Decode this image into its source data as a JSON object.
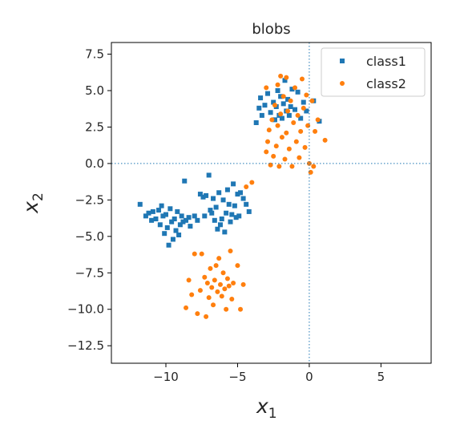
{
  "chart_data": {
    "type": "scatter",
    "title": "blobs",
    "xlabel": "x",
    "xlabel_subscript": "1",
    "ylabel": "x",
    "ylabel_subscript": "2",
    "xlim": [
      -13.8,
      8.5
    ],
    "ylim": [
      -13.7,
      8.3
    ],
    "xticks": [
      -10,
      -5,
      0,
      5
    ],
    "xtick_labels": [
      "−10",
      "−5",
      "0",
      "5"
    ],
    "yticks": [
      7.5,
      5.0,
      2.5,
      0.0,
      -2.5,
      -5.0,
      -7.5,
      -10.0,
      -12.5
    ],
    "ytick_labels": [
      "7.5",
      "5.0",
      "2.5",
      "0.0",
      "−2.5",
      "−5.0",
      "−7.5",
      "−10.0",
      "−12.5"
    ],
    "reference_lines": {
      "x": 0,
      "y": 0,
      "style": "dotted",
      "color": "#1f77b4"
    },
    "grid": false,
    "legend": "top-right",
    "series": [
      {
        "name": "class1",
        "marker": "square",
        "color": "#1f77b4",
        "points": [
          [
            -11.8,
            -2.8
          ],
          [
            -11.4,
            -3.6
          ],
          [
            -11.2,
            -3.4
          ],
          [
            -11.0,
            -3.9
          ],
          [
            -10.9,
            -3.3
          ],
          [
            -10.7,
            -3.8
          ],
          [
            -10.5,
            -3.2
          ],
          [
            -10.4,
            -4.2
          ],
          [
            -10.3,
            -2.9
          ],
          [
            -10.2,
            -3.6
          ],
          [
            -10.1,
            -4.8
          ],
          [
            -10.0,
            -3.5
          ],
          [
            -9.9,
            -4.4
          ],
          [
            -9.8,
            -5.6
          ],
          [
            -9.7,
            -3.1
          ],
          [
            -9.6,
            -4.0
          ],
          [
            -9.5,
            -5.2
          ],
          [
            -9.4,
            -3.8
          ],
          [
            -9.3,
            -4.6
          ],
          [
            -9.2,
            -3.3
          ],
          [
            -9.1,
            -4.9
          ],
          [
            -9.0,
            -4.2
          ],
          [
            -8.9,
            -3.6
          ],
          [
            -8.8,
            -4.0
          ],
          [
            -8.7,
            -1.2
          ],
          [
            -8.6,
            -3.9
          ],
          [
            -8.4,
            -3.7
          ],
          [
            -8.3,
            -4.3
          ],
          [
            -8.0,
            -3.6
          ],
          [
            -7.8,
            -3.9
          ],
          [
            -7.6,
            -2.1
          ],
          [
            -7.4,
            -2.3
          ],
          [
            -7.3,
            -3.6
          ],
          [
            -7.2,
            -2.2
          ],
          [
            -7.0,
            -0.8
          ],
          [
            -6.9,
            -3.2
          ],
          [
            -6.8,
            -3.4
          ],
          [
            -6.7,
            -2.4
          ],
          [
            -6.6,
            -3.9
          ],
          [
            -6.5,
            -3.0
          ],
          [
            -6.4,
            -4.5
          ],
          [
            -6.3,
            -2.0
          ],
          [
            -6.2,
            -4.2
          ],
          [
            -6.1,
            -3.8
          ],
          [
            -6.0,
            -2.5
          ],
          [
            -5.9,
            -4.7
          ],
          [
            -5.8,
            -3.4
          ],
          [
            -5.7,
            -1.8
          ],
          [
            -5.6,
            -2.8
          ],
          [
            -5.5,
            -4.0
          ],
          [
            -5.4,
            -3.5
          ],
          [
            -5.3,
            -1.4
          ],
          [
            -5.2,
            -2.9
          ],
          [
            -5.1,
            -3.7
          ],
          [
            -5.0,
            -2.1
          ],
          [
            -4.9,
            -3.6
          ],
          [
            -4.8,
            -2.0
          ],
          [
            -4.6,
            -2.4
          ],
          [
            -4.4,
            -2.8
          ],
          [
            -4.2,
            -3.3
          ],
          [
            -3.7,
            2.8
          ],
          [
            -3.5,
            3.8
          ],
          [
            -3.4,
            4.5
          ],
          [
            -3.3,
            3.3
          ],
          [
            -3.1,
            4.0
          ],
          [
            -2.9,
            4.8
          ],
          [
            -2.7,
            3.5
          ],
          [
            -2.5,
            4.2
          ],
          [
            -2.4,
            3.0
          ],
          [
            -2.3,
            3.9
          ],
          [
            -2.2,
            5.0
          ],
          [
            -2.1,
            3.3
          ],
          [
            -2.0,
            4.6
          ],
          [
            -1.9,
            3.1
          ],
          [
            -1.8,
            4.1
          ],
          [
            -1.7,
            5.7
          ],
          [
            -1.6,
            3.6
          ],
          [
            -1.5,
            4.4
          ],
          [
            -1.4,
            3.3
          ],
          [
            -1.3,
            3.9
          ],
          [
            -1.2,
            5.1
          ],
          [
            -1.0,
            3.7
          ],
          [
            -0.8,
            4.9
          ],
          [
            -0.6,
            3.1
          ],
          [
            -0.4,
            4.2
          ],
          [
            -0.2,
            3.6
          ],
          [
            0.3,
            4.3
          ],
          [
            0.7,
            2.9
          ]
        ]
      },
      {
        "name": "class2",
        "marker": "circle",
        "color": "#ff7f0e",
        "points": [
          [
            -8.6,
            -9.9
          ],
          [
            -8.4,
            -8.0
          ],
          [
            -8.2,
            -9.0
          ],
          [
            -8.0,
            -6.2
          ],
          [
            -7.8,
            -10.3
          ],
          [
            -7.6,
            -8.7
          ],
          [
            -7.5,
            -6.2
          ],
          [
            -7.3,
            -7.8
          ],
          [
            -7.2,
            -10.5
          ],
          [
            -7.1,
            -8.2
          ],
          [
            -7.0,
            -9.2
          ],
          [
            -6.9,
            -7.2
          ],
          [
            -6.8,
            -8.5
          ],
          [
            -6.7,
            -9.7
          ],
          [
            -6.6,
            -8.0
          ],
          [
            -6.5,
            -7.0
          ],
          [
            -6.4,
            -8.8
          ],
          [
            -6.3,
            -6.5
          ],
          [
            -6.2,
            -8.3
          ],
          [
            -6.1,
            -9.1
          ],
          [
            -6.0,
            -7.5
          ],
          [
            -5.9,
            -8.6
          ],
          [
            -5.8,
            -10.0
          ],
          [
            -5.7,
            -7.9
          ],
          [
            -5.6,
            -8.4
          ],
          [
            -5.5,
            -6.0
          ],
          [
            -5.4,
            -9.3
          ],
          [
            -5.3,
            -8.2
          ],
          [
            -5.0,
            -7.0
          ],
          [
            -4.8,
            -10.0
          ],
          [
            -4.6,
            -8.3
          ],
          [
            -4.4,
            -1.6
          ],
          [
            -4.0,
            -1.3
          ],
          [
            -3.0,
            0.8
          ],
          [
            -3.0,
            5.2
          ],
          [
            -2.9,
            1.5
          ],
          [
            -2.8,
            2.3
          ],
          [
            -2.7,
            -0.1
          ],
          [
            -2.6,
            3.0
          ],
          [
            -2.5,
            0.5
          ],
          [
            -2.4,
            4.0
          ],
          [
            -2.3,
            1.2
          ],
          [
            -2.2,
            2.6
          ],
          [
            -2.2,
            5.4
          ],
          [
            -2.1,
            -0.2
          ],
          [
            -2.0,
            3.4
          ],
          [
            -2.0,
            6.0
          ],
          [
            -1.9,
            1.8
          ],
          [
            -1.8,
            4.6
          ],
          [
            -1.7,
            0.3
          ],
          [
            -1.6,
            2.1
          ],
          [
            -1.6,
            5.9
          ],
          [
            -1.5,
            3.6
          ],
          [
            -1.4,
            1.0
          ],
          [
            -1.3,
            4.3
          ],
          [
            -1.2,
            -0.2
          ],
          [
            -1.1,
            2.8
          ],
          [
            -1.0,
            5.2
          ],
          [
            -0.9,
            1.5
          ],
          [
            -0.8,
            3.3
          ],
          [
            -0.7,
            0.4
          ],
          [
            -0.6,
            2.2
          ],
          [
            -0.5,
            5.8
          ],
          [
            -0.4,
            3.8
          ],
          [
            -0.3,
            1.1
          ],
          [
            -0.2,
            4.7
          ],
          [
            -0.1,
            2.6
          ],
          [
            0.0,
            0.0
          ],
          [
            0.1,
            -0.6
          ],
          [
            0.2,
            4.3
          ],
          [
            0.3,
            -0.2
          ],
          [
            0.4,
            2.2
          ],
          [
            0.6,
            3.0
          ],
          [
            1.1,
            1.6
          ]
        ]
      }
    ]
  }
}
